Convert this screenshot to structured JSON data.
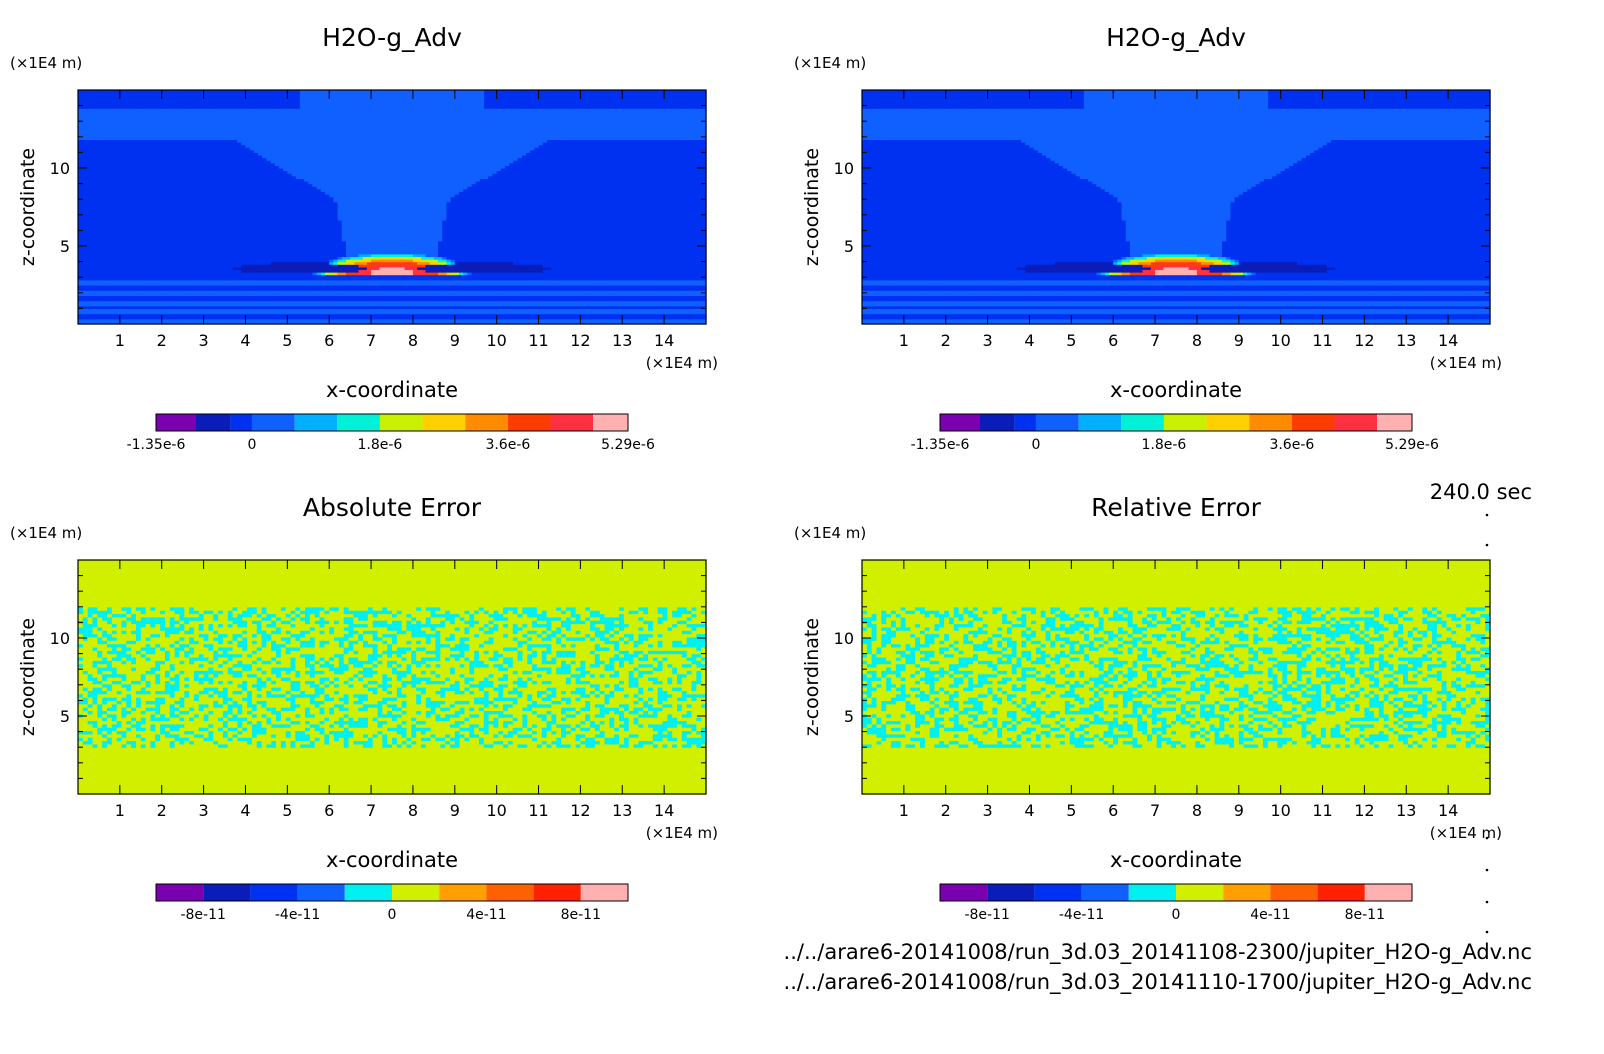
{
  "time_label": "240.0 sec",
  "footer": {
    "file1": "../../arare6-20141008/run_3d.03_20141108-2300/jupiter_H2O-g_Adv.nc",
    "file2": "../../arare6-20141008/run_3d.03_20141110-1700/jupiter_H2O-g_Adv.nc"
  },
  "chart_data": [
    {
      "type": "heatmap",
      "title": "H2O-g_Adv",
      "xlabel": "x-coordinate",
      "ylabel": "z-coordinate",
      "xunit": "(×1E4 m)",
      "yunit": "(×1E4 m)",
      "xlim": [
        0,
        15
      ],
      "ylim": [
        0,
        15
      ],
      "xticks": [
        1,
        2,
        3,
        4,
        5,
        6,
        7,
        8,
        9,
        10,
        11,
        12,
        13,
        14
      ],
      "yticks": [
        5,
        10
      ],
      "field": "plume",
      "colorbar": {
        "colors": [
          "#7a00b0",
          "#0a1db8",
          "#0030f0",
          "#1060ff",
          "#00b0ff",
          "#00f0d8",
          "#c8f000",
          "#ffd000",
          "#ff8c00",
          "#ff3c00",
          "#ff3040",
          "#ffb0b0"
        ],
        "boundaries": [
          -1.35e-06,
          -8e-07,
          -3e-07,
          0,
          6e-07,
          1.2e-06,
          1.8e-06,
          2.4e-06,
          3e-06,
          3.6e-06,
          4.2e-06,
          4.8e-06,
          5.29e-06
        ],
        "tick_labels": [
          "-1.35e-6",
          "0",
          "1.8e-6",
          "3.6e-6",
          "5.29e-6"
        ]
      }
    },
    {
      "type": "heatmap",
      "title": "H2O-g_Adv",
      "xlabel": "x-coordinate",
      "ylabel": "z-coordinate",
      "xunit": "(×1E4 m)",
      "yunit": "(×1E4 m)",
      "xlim": [
        0,
        15
      ],
      "ylim": [
        0,
        15
      ],
      "xticks": [
        1,
        2,
        3,
        4,
        5,
        6,
        7,
        8,
        9,
        10,
        11,
        12,
        13,
        14
      ],
      "yticks": [
        5,
        10
      ],
      "field": "plume",
      "colorbar": {
        "colors": [
          "#7a00b0",
          "#0a1db8",
          "#0030f0",
          "#1060ff",
          "#00b0ff",
          "#00f0d8",
          "#c8f000",
          "#ffd000",
          "#ff8c00",
          "#ff3c00",
          "#ff3040",
          "#ffb0b0"
        ],
        "boundaries": [
          -1.35e-06,
          -8e-07,
          -3e-07,
          0,
          6e-07,
          1.2e-06,
          1.8e-06,
          2.4e-06,
          3e-06,
          3.6e-06,
          4.2e-06,
          4.8e-06,
          5.29e-06
        ],
        "tick_labels": [
          "-1.35e-6",
          "0",
          "1.8e-6",
          "3.6e-6",
          "5.29e-6"
        ]
      }
    },
    {
      "type": "heatmap",
      "title": "Absolute Error",
      "xlabel": "x-coordinate",
      "ylabel": "z-coordinate",
      "xunit": "(×1E4 m)",
      "yunit": "(×1E4 m)",
      "xlim": [
        0,
        15
      ],
      "ylim": [
        0,
        15
      ],
      "xticks": [
        1,
        2,
        3,
        4,
        5,
        6,
        7,
        8,
        9,
        10,
        11,
        12,
        13,
        14
      ],
      "yticks": [
        5,
        10
      ],
      "field": "noise",
      "noise_band": [
        3,
        12
      ],
      "seed": 7,
      "colorbar": {
        "colors": [
          "#7a00b0",
          "#0a1db8",
          "#0030f0",
          "#1060ff",
          "#00f0f0",
          "#d0f000",
          "#ffa000",
          "#ff6000",
          "#ff2000",
          "#ffb0b0"
        ],
        "boundaries": [
          -1e-10,
          -8e-11,
          -6e-11,
          -4e-11,
          -2e-11,
          0,
          2e-11,
          4e-11,
          6e-11,
          8e-11,
          1e-10
        ],
        "tick_labels": [
          "-8e-11",
          "-4e-11",
          "0",
          "4e-11",
          "8e-11"
        ]
      }
    },
    {
      "type": "heatmap",
      "title": "Relative Error",
      "xlabel": "x-coordinate",
      "ylabel": "z-coordinate",
      "xunit": "(×1E4 m)",
      "yunit": "(×1E4 m)",
      "xlim": [
        0,
        15
      ],
      "ylim": [
        0,
        15
      ],
      "xticks": [
        1,
        2,
        3,
        4,
        5,
        6,
        7,
        8,
        9,
        10,
        11,
        12,
        13,
        14
      ],
      "yticks": [
        5,
        10
      ],
      "field": "noise",
      "noise_band": [
        3,
        12
      ],
      "seed": 19,
      "colorbar": {
        "colors": [
          "#7a00b0",
          "#0a1db8",
          "#0030f0",
          "#1060ff",
          "#00f0f0",
          "#d0f000",
          "#ffa000",
          "#ff6000",
          "#ff2000",
          "#ffb0b0"
        ],
        "boundaries": [
          -1e-10,
          -8e-11,
          -6e-11,
          -4e-11,
          -2e-11,
          0,
          2e-11,
          4e-11,
          6e-11,
          8e-11,
          1e-10
        ],
        "tick_labels": [
          "-8e-11",
          "-4e-11",
          "0",
          "4e-11",
          "8e-11"
        ]
      }
    }
  ]
}
